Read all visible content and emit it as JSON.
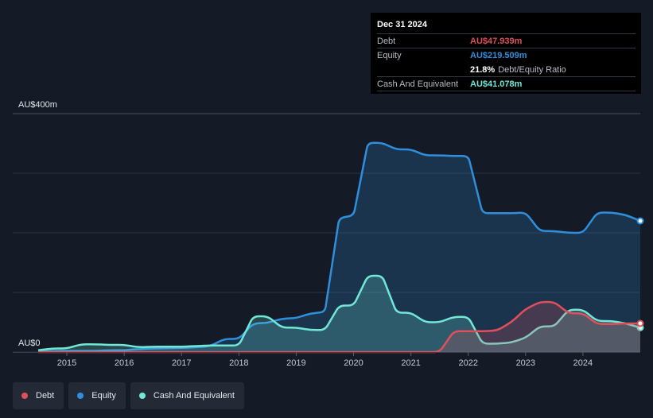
{
  "tooltip": {
    "date": "Dec 31 2024",
    "debt_label": "Debt",
    "debt_value": "AU$47.939m",
    "equity_label": "Equity",
    "equity_value": "AU$219.509m",
    "ratio_value": "21.8%",
    "ratio_label": "Debt/Equity Ratio",
    "cash_label": "Cash And Equivalent",
    "cash_value": "AU$41.078m"
  },
  "colors": {
    "background": "#151b26",
    "debt": "#e0505a",
    "equity": "#2f8fdc",
    "cash": "#71e7d6",
    "grid": "#2c3340"
  },
  "legend": [
    {
      "label": "Debt",
      "color": "#e0505a"
    },
    {
      "label": "Equity",
      "color": "#2f8fdc"
    },
    {
      "label": "Cash And Equivalent",
      "color": "#71e7d6"
    }
  ],
  "chart_data": {
    "type": "area",
    "y_top_label": "AU$400m",
    "y_bottom_label": "AU$0",
    "ylim": [
      0,
      400
    ],
    "xlim": [
      2014.5,
      2025.0
    ],
    "grid": true,
    "x_ticks": [
      "2015",
      "2016",
      "2017",
      "2018",
      "2019",
      "2020",
      "2021",
      "2022",
      "2023",
      "2024"
    ],
    "series": [
      {
        "name": "Equity",
        "color": "#2f8fdc",
        "points": [
          [
            2014.5,
            1
          ],
          [
            2015.0,
            2
          ],
          [
            2015.5,
            2
          ],
          [
            2015.75,
            3
          ],
          [
            2016.0,
            3
          ],
          [
            2016.25,
            5
          ],
          [
            2016.5,
            6
          ],
          [
            2017.0,
            7
          ],
          [
            2017.25,
            8
          ],
          [
            2017.5,
            10
          ],
          [
            2017.75,
            22
          ],
          [
            2018.0,
            22
          ],
          [
            2018.25,
            48
          ],
          [
            2018.5,
            49
          ],
          [
            2018.75,
            56
          ],
          [
            2019.0,
            57
          ],
          [
            2019.25,
            65
          ],
          [
            2019.5,
            67
          ],
          [
            2019.75,
            225
          ],
          [
            2020.0,
            229
          ],
          [
            2020.25,
            351
          ],
          [
            2020.5,
            351
          ],
          [
            2020.75,
            340
          ],
          [
            2021.0,
            340
          ],
          [
            2021.25,
            330
          ],
          [
            2021.5,
            330
          ],
          [
            2021.75,
            329
          ],
          [
            2022.0,
            329
          ],
          [
            2022.25,
            233
          ],
          [
            2022.5,
            233
          ],
          [
            2022.75,
            233
          ],
          [
            2023.0,
            234
          ],
          [
            2023.25,
            203
          ],
          [
            2023.5,
            203
          ],
          [
            2023.75,
            200
          ],
          [
            2024.0,
            200
          ],
          [
            2024.25,
            234
          ],
          [
            2024.5,
            234
          ],
          [
            2024.75,
            230
          ],
          [
            2025.0,
            220
          ]
        ]
      },
      {
        "name": "Cash And Equivalent",
        "color": "#71e7d6",
        "points": [
          [
            2014.5,
            3
          ],
          [
            2014.75,
            6
          ],
          [
            2015.0,
            6
          ],
          [
            2015.25,
            13
          ],
          [
            2015.5,
            13
          ],
          [
            2015.75,
            12
          ],
          [
            2016.0,
            12
          ],
          [
            2016.25,
            8
          ],
          [
            2016.5,
            9
          ],
          [
            2016.75,
            9
          ],
          [
            2017.0,
            9
          ],
          [
            2017.25,
            10
          ],
          [
            2017.5,
            11
          ],
          [
            2017.75,
            11
          ],
          [
            2018.0,
            11
          ],
          [
            2018.25,
            60
          ],
          [
            2018.5,
            60
          ],
          [
            2018.75,
            41
          ],
          [
            2019.0,
            41
          ],
          [
            2019.25,
            37
          ],
          [
            2019.5,
            37
          ],
          [
            2019.75,
            78
          ],
          [
            2020.0,
            78
          ],
          [
            2020.25,
            128
          ],
          [
            2020.5,
            128
          ],
          [
            2020.75,
            66
          ],
          [
            2021.0,
            66
          ],
          [
            2021.25,
            50
          ],
          [
            2021.5,
            50
          ],
          [
            2021.75,
            59
          ],
          [
            2022.0,
            59
          ],
          [
            2022.25,
            14
          ],
          [
            2022.5,
            14
          ],
          [
            2022.75,
            16
          ],
          [
            2023.0,
            24
          ],
          [
            2023.25,
            43
          ],
          [
            2023.5,
            43
          ],
          [
            2023.75,
            71
          ],
          [
            2024.0,
            71
          ],
          [
            2024.25,
            52
          ],
          [
            2024.5,
            52
          ],
          [
            2024.75,
            48
          ],
          [
            2025.0,
            41
          ]
        ]
      },
      {
        "name": "Debt",
        "color": "#e0505a",
        "points": [
          [
            2014.5,
            0
          ],
          [
            2021.5,
            0
          ],
          [
            2021.75,
            35
          ],
          [
            2022.0,
            35
          ],
          [
            2022.25,
            35
          ],
          [
            2022.5,
            36
          ],
          [
            2022.75,
            50
          ],
          [
            2023.0,
            72
          ],
          [
            2023.25,
            84
          ],
          [
            2023.5,
            84
          ],
          [
            2023.75,
            65
          ],
          [
            2024.0,
            65
          ],
          [
            2024.25,
            47
          ],
          [
            2024.5,
            47
          ],
          [
            2024.75,
            48
          ],
          [
            2025.0,
            48
          ]
        ]
      }
    ]
  }
}
